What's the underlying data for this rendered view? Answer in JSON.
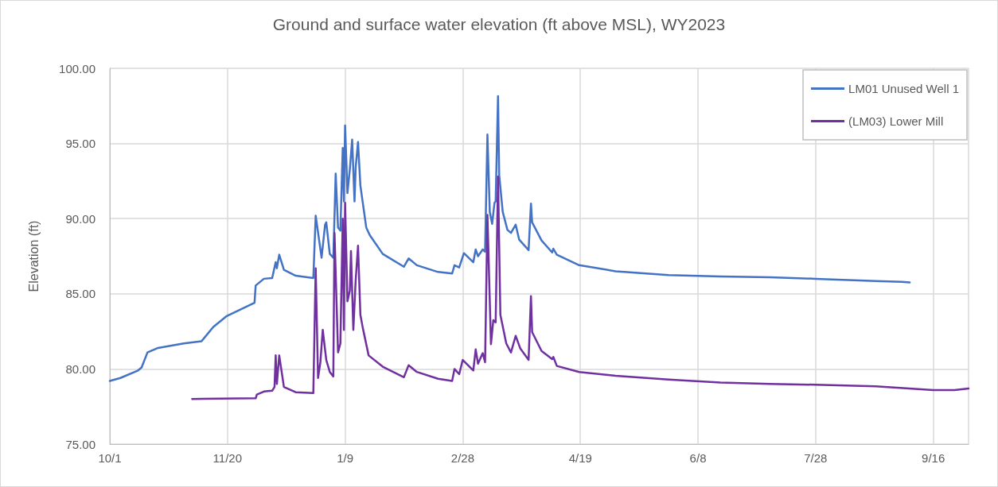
{
  "chart_data": {
    "type": "line",
    "title": "Ground and surface water elevation (ft above MSL), WY2023",
    "ylabel": "Elevation (ft)",
    "xlim": [
      "2022-10-01",
      "2023-10-01"
    ],
    "xticks": [
      {
        "value": "2022-10-01",
        "label": "10/1"
      },
      {
        "value": "2022-11-20",
        "label": "11/20"
      },
      {
        "value": "2023-01-09",
        "label": "1/9"
      },
      {
        "value": "2023-02-28",
        "label": "2/28"
      },
      {
        "value": "2023-04-19",
        "label": "4/19"
      },
      {
        "value": "2023-06-08",
        "label": "6/8"
      },
      {
        "value": "2023-07-28",
        "label": "7/28"
      },
      {
        "value": "2023-09-16",
        "label": "9/16"
      }
    ],
    "ylim": [
      75,
      100
    ],
    "yticks": [
      {
        "value": 75,
        "label": "75.00"
      },
      {
        "value": 80,
        "label": "80.00"
      },
      {
        "value": 85,
        "label": "85.00"
      },
      {
        "value": 90,
        "label": "90.00"
      },
      {
        "value": 95,
        "label": "95.00"
      },
      {
        "value": 100,
        "label": "100.00"
      }
    ],
    "grid": true,
    "legend": "top right",
    "marker": "none",
    "line_style": "solid",
    "series": [
      {
        "name": "LM01 Unused Well 1",
        "color": "#4472c4",
        "x": [
          "2022-10-01",
          "2022-10-05T12:00",
          "2022-10-13",
          "2022-10-14T12:00",
          "2022-10-17",
          "2022-10-21T12:00",
          "2022-11-01T12:00",
          "2022-11-09",
          "2022-11-14",
          "2022-11-19T12:00",
          "2022-12-01T12:00",
          "2022-12-02",
          "2022-12-05T12:00",
          "2022-12-09",
          "2022-12-10T12:00",
          "2022-12-11",
          "2022-12-12",
          "2022-12-14",
          "2022-12-19",
          "2022-12-26T12:00",
          "2022-12-27T12:00",
          "2022-12-30",
          "2022-12-31T12:00",
          "2023-01-01",
          "2023-01-02T12:00",
          "2023-01-04",
          "2023-01-05",
          "2023-01-06",
          "2023-01-07",
          "2023-01-08",
          "2023-01-08T12:00",
          "2023-01-09",
          "2023-01-10",
          "2023-01-11",
          "2023-01-12",
          "2023-01-13",
          "2023-01-13T12:00",
          "2023-01-14T12:00",
          "2023-01-15T12:00",
          "2023-01-18",
          "2023-01-19T12:00",
          "2023-01-25",
          "2023-02-03",
          "2023-02-05",
          "2023-02-08T12:00",
          "2023-02-17T12:00",
          "2023-02-23T12:00",
          "2023-02-24T12:00",
          "2023-02-26T12:00",
          "2023-02-28T12:00",
          "2023-03-04T12:00",
          "2023-03-05T12:00",
          "2023-03-06T12:00",
          "2023-03-08T12:00",
          "2023-03-09T12:00",
          "2023-03-10T12:00",
          "2023-03-11T12:00",
          "2023-03-12T12:00",
          "2023-03-13T12:00",
          "2023-03-14",
          "2023-03-15",
          "2023-03-15T12:00",
          "2023-03-17",
          "2023-03-19",
          "2023-03-20T12:00",
          "2023-03-22T12:00",
          "2023-03-24",
          "2023-03-28",
          "2023-03-29",
          "2023-03-29T12:00",
          "2023-04-02T12:00",
          "2023-04-07",
          "2023-04-07T12:00",
          "2023-04-09",
          "2023-04-18T12:00",
          "2023-05-04",
          "2023-05-26T12:00",
          "2023-06-17T12:00",
          "2023-07-08T12:00",
          "2023-07-28",
          "2023-08-22T12:00",
          "2023-09-02T12:00",
          "2023-09-06"
        ],
        "values": [
          79.2,
          79.4,
          79.9,
          80.1,
          81.1,
          81.4,
          81.7,
          81.85,
          82.8,
          83.5,
          84.4,
          85.55,
          86.0,
          86.05,
          87.1,
          86.7,
          87.6,
          86.6,
          86.2,
          86.05,
          90.2,
          87.4,
          89.6,
          89.75,
          87.65,
          87.4,
          93.0,
          89.4,
          89.2,
          94.7,
          91.15,
          96.2,
          91.7,
          93.25,
          95.25,
          91.15,
          93.4,
          95.1,
          92.2,
          89.4,
          88.9,
          87.65,
          86.8,
          87.35,
          86.9,
          86.45,
          86.35,
          86.9,
          86.75,
          87.7,
          87.1,
          87.95,
          87.5,
          87.95,
          87.8,
          95.6,
          90.45,
          89.65,
          91.05,
          91.15,
          98.15,
          92.9,
          90.45,
          89.25,
          89.05,
          89.6,
          88.6,
          87.9,
          91.0,
          89.75,
          88.55,
          87.75,
          88.0,
          87.6,
          86.9,
          86.5,
          86.25,
          86.15,
          86.1,
          86.0,
          85.85,
          85.8,
          85.75
        ]
      },
      {
        "name": "(LM03) Lower Mill",
        "color": "#7030a0",
        "x": [
          "2022-11-05",
          "2022-12-02",
          "2022-12-02T12:00",
          "2022-12-05T12:00",
          "2022-12-09",
          "2022-12-10",
          "2022-12-10T12:00",
          "2022-12-11",
          "2022-12-12",
          "2022-12-14",
          "2022-12-19",
          "2022-12-26T12:00",
          "2022-12-27T12:00",
          "2022-12-28T12:00",
          "2022-12-29T12:00",
          "2022-12-30T12:00",
          "2023-01-01",
          "2023-01-02T12:00",
          "2023-01-04",
          "2023-01-04T12:00",
          "2023-01-06",
          "2023-01-07",
          "2023-01-08",
          "2023-01-08T12:00",
          "2023-01-09",
          "2023-01-10",
          "2023-01-11",
          "2023-01-11T12:00",
          "2023-01-12T12:00",
          "2023-01-13T12:00",
          "2023-01-14T12:00",
          "2023-01-15T12:00",
          "2023-01-16T12:00",
          "2023-01-19",
          "2023-01-25",
          "2023-02-03",
          "2023-02-05",
          "2023-02-08T12:00",
          "2023-02-17T12:00",
          "2023-02-23T12:00",
          "2023-02-24T12:00",
          "2023-02-26T12:00",
          "2023-02-28",
          "2023-03-04T12:00",
          "2023-03-05T12:00",
          "2023-03-06T12:00",
          "2023-03-08T12:00",
          "2023-03-09T12:00",
          "2023-03-10T12:00",
          "2023-03-12",
          "2023-03-13",
          "2023-03-14",
          "2023-03-15",
          "2023-03-16",
          "2023-03-18T12:00",
          "2023-03-20T12:00",
          "2023-03-22T12:00",
          "2023-03-24T12:00",
          "2023-03-28",
          "2023-03-29",
          "2023-03-29T12:00",
          "2023-04-02T12:00",
          "2023-04-07",
          "2023-04-07T12:00",
          "2023-04-09",
          "2023-04-18T12:00",
          "2023-05-04",
          "2023-05-26T12:00",
          "2023-06-17T12:00",
          "2023-07-08T12:00",
          "2023-07-28",
          "2023-08-22T12:00",
          "2023-09-16",
          "2023-09-25",
          "2023-10-01"
        ],
        "values": [
          78.0,
          78.05,
          78.3,
          78.5,
          78.55,
          78.8,
          80.9,
          79.0,
          80.9,
          78.8,
          78.45,
          78.4,
          86.7,
          79.4,
          80.45,
          82.6,
          80.6,
          79.8,
          79.5,
          89.05,
          81.1,
          81.7,
          90.0,
          82.6,
          91.05,
          84.5,
          85.2,
          87.85,
          82.6,
          85.9,
          88.2,
          83.6,
          82.75,
          80.9,
          80.15,
          79.45,
          80.25,
          79.8,
          79.35,
          79.2,
          80.0,
          79.65,
          80.6,
          79.9,
          81.3,
          80.35,
          81.05,
          80.45,
          90.25,
          81.65,
          83.25,
          83.1,
          92.8,
          83.6,
          81.7,
          81.1,
          82.2,
          81.35,
          80.6,
          84.85,
          82.45,
          81.2,
          80.65,
          80.8,
          80.2,
          79.8,
          79.55,
          79.3,
          79.1,
          79.0,
          78.95,
          78.85,
          78.6,
          78.6,
          78.7
        ]
      }
    ]
  }
}
